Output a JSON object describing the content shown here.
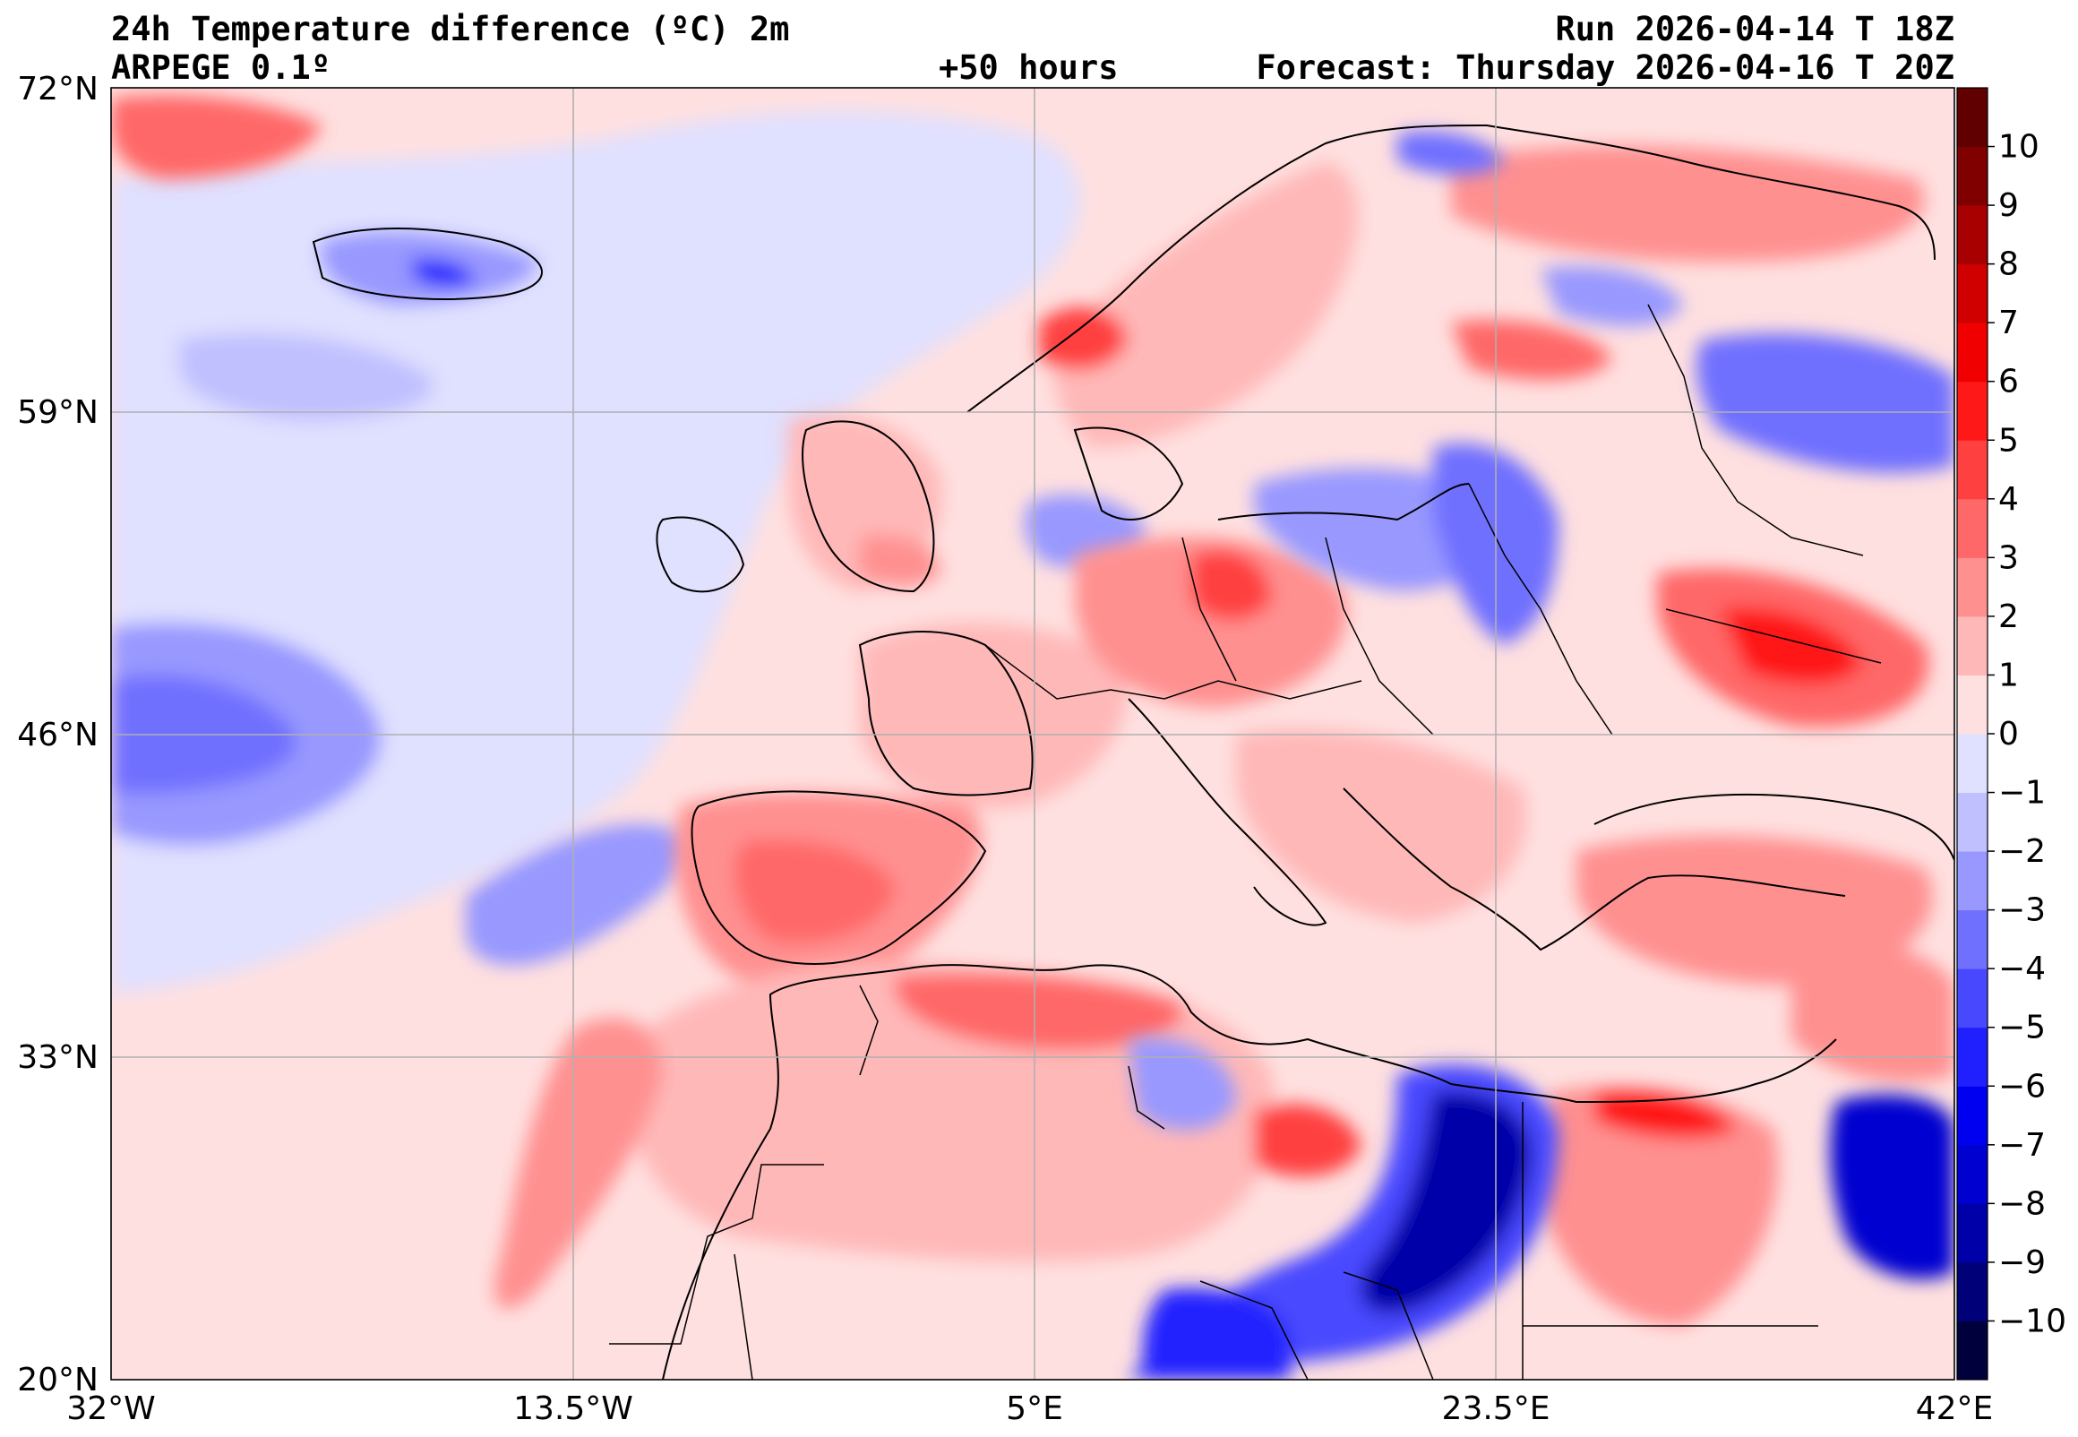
{
  "header": {
    "title": "24h Temperature difference (ºC) 2m",
    "model": "ARPEGE 0.1º",
    "lead": "+50 hours",
    "run": "Run 2026-04-14 T 18Z",
    "forecast": "Forecast: Thursday 2026-04-16 T 20Z"
  },
  "map": {
    "lon_range": [
      -32,
      42
    ],
    "lat_range": [
      20,
      72
    ],
    "lon_ticks": [
      "32°W",
      "13.5°W",
      "5°E",
      "23.5°E",
      "42°E"
    ],
    "lat_ticks": [
      "72°N",
      "59°N",
      "46°N",
      "33°N",
      "20°N"
    ],
    "grid": true,
    "background_color": "#ffe0e0"
  },
  "colorbar": {
    "levels": [
      -11,
      -10,
      -9,
      -8,
      -7,
      -6,
      -5,
      -4,
      -3,
      -2,
      -1,
      0,
      1,
      2,
      3,
      4,
      5,
      6,
      7,
      8,
      9,
      10,
      11
    ],
    "tick_labels": [
      "−10",
      "−9",
      "−8",
      "−7",
      "−6",
      "−5",
      "−4",
      "−3",
      "−2",
      "−1",
      "0",
      "1",
      "2",
      "3",
      "4",
      "5",
      "6",
      "7",
      "8",
      "9",
      "10"
    ],
    "colors": [
      "#00003c",
      "#000078",
      "#0000a8",
      "#0000d0",
      "#0000f0",
      "#2020ff",
      "#4848ff",
      "#7070ff",
      "#9898ff",
      "#c0c0ff",
      "#e0e0ff",
      "#ffe0e0",
      "#ffb8b8",
      "#ff9090",
      "#ff6868",
      "#ff4040",
      "#ff1818",
      "#f00000",
      "#d00000",
      "#a80000",
      "#800000",
      "#600000"
    ]
  }
}
